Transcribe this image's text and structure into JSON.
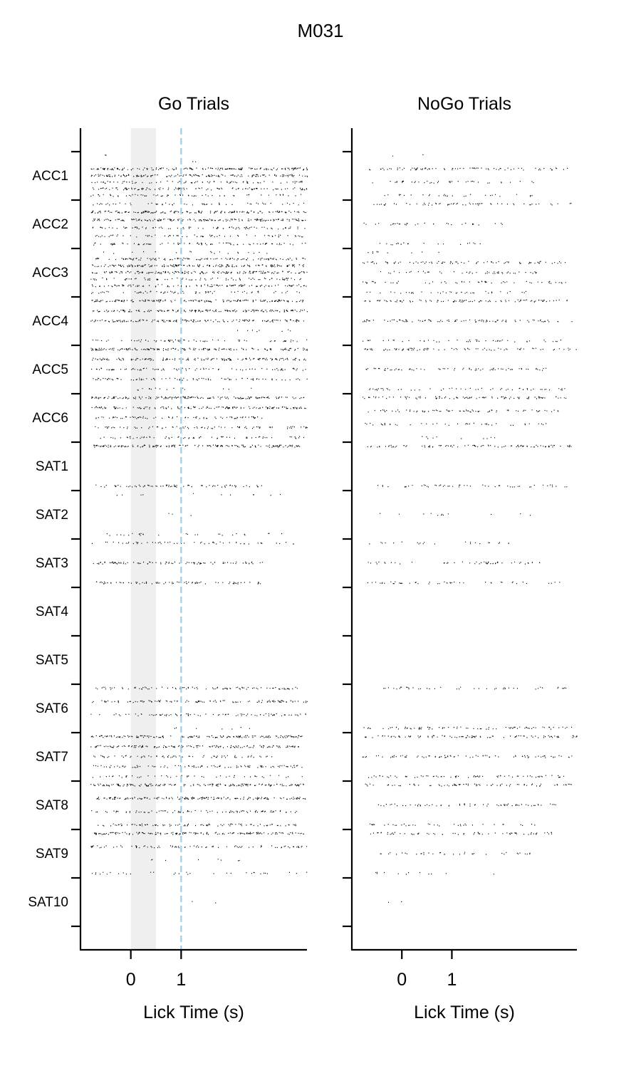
{
  "figure": {
    "title": "M031"
  },
  "chart_data": [
    {
      "type": "scatter",
      "title": "Go Trials",
      "xlabel": "Lick Time (s)",
      "ylabel": "",
      "xticks": [
        0,
        1
      ],
      "xlim": [
        -1,
        3.5
      ],
      "categories": [
        "ACC1",
        "ACC2",
        "ACC3",
        "ACC4",
        "ACC5",
        "ACC6",
        "SAT1",
        "SAT2",
        "SAT3",
        "SAT4",
        "SAT5",
        "SAT6",
        "SAT7",
        "SAT8",
        "SAT9",
        "SAT10"
      ],
      "shaded_interval": [
        0,
        0.5
      ],
      "reference_line": 1,
      "colors": {
        "shade": "#efefef",
        "reference_line": "#a8cfe8",
        "marks": "#000000"
      },
      "sessions": [
        {
          "name": "ACC1",
          "rows": [
            {
              "x": [
                -0.8,
                -0.4
              ],
              "density": 0.06
            },
            {
              "x": [
                1.2,
                1.3
              ],
              "density": 0.3
            },
            {
              "x": [
                -0.8,
                3.5
              ],
              "density": 1.0
            },
            {
              "x": [
                -0.8,
                3.5
              ],
              "density": 0.95
            },
            {
              "x": [
                -0.8,
                3.4
              ],
              "density": 0.5
            },
            {
              "x": [
                -0.8,
                3.5
              ],
              "density": 0.7
            },
            {
              "x": [
                -0.8,
                3.4
              ],
              "density": 0.4
            }
          ]
        },
        {
          "name": "ACC2",
          "rows": [
            {
              "x": [
                -0.8,
                3.5
              ],
              "density": 0.35
            },
            {
              "x": [
                -0.8,
                3.5
              ],
              "density": 0.95
            },
            {
              "x": [
                -0.8,
                3.5
              ],
              "density": 1.0
            },
            {
              "x": [
                -0.8,
                3.5
              ],
              "density": 0.5
            },
            {
              "x": [
                -0.8,
                3.5
              ],
              "density": 0.4
            },
            {
              "x": [
                -0.8,
                3.5
              ],
              "density": 0.5
            }
          ]
        },
        {
          "name": "ACC3",
          "rows": [
            {
              "x": [
                -0.8,
                3.2
              ],
              "density": 0.12
            },
            {
              "x": [
                -0.8,
                3.5
              ],
              "density": 0.7
            },
            {
              "x": [
                -0.8,
                3.5
              ],
              "density": 1.0
            },
            {
              "x": [
                -0.8,
                3.5
              ],
              "density": 1.0
            },
            {
              "x": [
                -0.8,
                3.5
              ],
              "density": 0.5
            },
            {
              "x": [
                -0.8,
                3.5
              ],
              "density": 0.7
            },
            {
              "x": [
                -0.8,
                3.5
              ],
              "density": 0.4
            }
          ]
        },
        {
          "name": "ACC4",
          "rows": [
            {
              "x": [
                -0.8,
                3.5
              ],
              "density": 1.0
            },
            {
              "x": [
                -0.8,
                3.5
              ],
              "density": 1.0
            },
            {
              "x": [
                -0.8,
                3.5
              ],
              "density": 0.9
            },
            {
              "x": [
                2.0,
                3.3
              ],
              "density": 0.15
            },
            {
              "x": [
                -0.8,
                3.5
              ],
              "density": 0.4
            }
          ]
        },
        {
          "name": "ACC5",
          "rows": [
            {
              "x": [
                -0.8,
                3.5
              ],
              "density": 1.0
            },
            {
              "x": [
                -0.8,
                3.5
              ],
              "density": 0.9
            },
            {
              "x": [
                -0.8,
                3.5
              ],
              "density": 0.5
            },
            {
              "x": [
                -0.8,
                3.5
              ],
              "density": 0.5
            },
            {
              "x": [
                -0.1,
                2.4
              ],
              "density": 0.15
            }
          ]
        },
        {
          "name": "ACC6",
          "rows": [
            {
              "x": [
                -0.8,
                3.5
              ],
              "density": 1.0
            },
            {
              "x": [
                -0.8,
                3.5
              ],
              "density": 0.9
            },
            {
              "x": [
                -0.7,
                2.6
              ],
              "density": 0.6
            },
            {
              "x": [
                -0.8,
                3.5
              ],
              "density": 0.5
            },
            {
              "x": [
                -0.8,
                3.5
              ],
              "density": 0.4
            }
          ]
        },
        {
          "name": "SAT1",
          "rows": [
            {
              "x": [
                -0.8,
                3.4
              ],
              "density": 1.0
            },
            {
              "x": [
                -0.7,
                2.6
              ],
              "density": 0.6
            }
          ]
        },
        {
          "name": "SAT2",
          "rows": [
            {
              "x": [
                -0.3,
                3.2
              ],
              "density": 0.08
            },
            {
              "x": [
                0.5,
                1.3
              ],
              "density": 0.1
            },
            {
              "x": [
                -0.6,
                3.0
              ],
              "density": 0.2
            }
          ]
        },
        {
          "name": "SAT3",
          "rows": [
            {
              "x": [
                -0.8,
                3.3
              ],
              "density": 0.35
            },
            {
              "x": [
                -0.8,
                2.7
              ],
              "density": 0.7
            },
            {
              "x": [
                -0.7,
                2.7
              ],
              "density": 0.6
            }
          ]
        },
        {
          "name": "SAT4",
          "rows": []
        },
        {
          "name": "SAT5",
          "rows": []
        },
        {
          "name": "SAT6",
          "rows": [
            {
              "x": [
                -0.7,
                3.3
              ],
              "density": 0.6
            },
            {
              "x": [
                -0.8,
                3.5
              ],
              "density": 0.7
            },
            {
              "x": [
                -0.8,
                3.5
              ],
              "density": 0.5
            },
            {
              "x": [
                0.8,
                2.5
              ],
              "density": 0.1
            }
          ]
        },
        {
          "name": "SAT7",
          "rows": [
            {
              "x": [
                -0.8,
                3.4
              ],
              "density": 1.0
            },
            {
              "x": [
                -0.8,
                3.4
              ],
              "density": 0.9
            },
            {
              "x": [
                -0.8,
                2.8
              ],
              "density": 0.5
            },
            {
              "x": [
                -0.8,
                3.4
              ],
              "density": 0.6
            },
            {
              "x": [
                -0.8,
                3.5
              ],
              "density": 0.3
            }
          ]
        },
        {
          "name": "SAT8",
          "rows": [
            {
              "x": [
                -0.8,
                3.5
              ],
              "density": 1.0
            },
            {
              "x": [
                -0.8,
                3.5
              ],
              "density": 1.0
            },
            {
              "x": [
                -0.8,
                3.3
              ],
              "density": 0.6
            },
            {
              "x": [
                -0.8,
                3.3
              ],
              "density": 0.6
            }
          ]
        },
        {
          "name": "SAT9",
          "rows": [
            {
              "x": [
                -0.8,
                3.5
              ],
              "density": 0.95
            },
            {
              "x": [
                -0.8,
                3.5
              ],
              "density": 0.5
            },
            {
              "x": [
                0.4,
                2.4
              ],
              "density": 0.1
            },
            {
              "x": [
                -0.8,
                3.5
              ],
              "density": 0.2
            }
          ]
        },
        {
          "name": "SAT10",
          "rows": [
            {
              "x": [
                0.6,
                2.1
              ],
              "density": 0.04
            }
          ]
        }
      ]
    },
    {
      "type": "scatter",
      "title": "NoGo Trials",
      "xlabel": "Lick Time (s)",
      "ylabel": "",
      "xticks": [
        0,
        1
      ],
      "xlim": [
        -1,
        3.5
      ],
      "categories": [
        "ACC1",
        "ACC2",
        "ACC3",
        "ACC4",
        "ACC5",
        "ACC6",
        "SAT1",
        "SAT2",
        "SAT3",
        "SAT4",
        "SAT5",
        "SAT6",
        "SAT7",
        "SAT8",
        "SAT9",
        "SAT10"
      ],
      "colors": {
        "marks": "#000000"
      },
      "sessions": [
        {
          "name": "ACC1",
          "rows": [
            {
              "x": [
                -0.2,
                0.6
              ],
              "density": 0.06
            },
            {
              "x": [
                -0.7,
                3.4
              ],
              "density": 0.5
            },
            {
              "x": [
                -0.6,
                2.8
              ],
              "density": 0.3
            },
            {
              "x": [
                -0.4,
                2.6
              ],
              "density": 0.25
            }
          ]
        },
        {
          "name": "ACC2",
          "rows": [
            {
              "x": [
                -0.6,
                3.5
              ],
              "density": 0.4
            },
            {
              "x": [
                -0.8,
                2.0
              ],
              "density": 0.3
            },
            {
              "x": [
                -0.6,
                1.6
              ],
              "density": 0.25
            }
          ]
        },
        {
          "name": "ACC3",
          "rows": [
            {
              "x": [
                -0.8,
                0.9
              ],
              "density": 0.15
            },
            {
              "x": [
                -0.8,
                3.4
              ],
              "density": 0.5
            },
            {
              "x": [
                -0.7,
                2.9
              ],
              "density": 0.35
            },
            {
              "x": [
                -0.8,
                3.3
              ],
              "density": 0.35
            },
            {
              "x": [
                -0.8,
                2.6
              ],
              "density": 0.3
            }
          ]
        },
        {
          "name": "ACC4",
          "rows": [
            {
              "x": [
                -0.8,
                3.4
              ],
              "density": 0.6
            },
            {
              "x": [
                -0.8,
                3.4
              ],
              "density": 0.6
            },
            {
              "x": [
                -0.8,
                3.2
              ],
              "density": 0.3
            }
          ]
        },
        {
          "name": "ACC5",
          "rows": [
            {
              "x": [
                -0.8,
                3.5
              ],
              "density": 0.5
            },
            {
              "x": [
                -0.8,
                3.0
              ],
              "density": 0.5
            },
            {
              "x": [
                -0.7,
                3.4
              ],
              "density": 0.35
            }
          ]
        },
        {
          "name": "ACC6",
          "rows": [
            {
              "x": [
                -0.8,
                3.4
              ],
              "density": 0.6
            },
            {
              "x": [
                -0.8,
                3.2
              ],
              "density": 0.5
            },
            {
              "x": [
                -0.8,
                2.9
              ],
              "density": 0.3
            },
            {
              "x": [
                0.1,
                1.9
              ],
              "density": 0.15
            }
          ]
        },
        {
          "name": "SAT1",
          "rows": [
            {
              "x": [
                -0.8,
                3.4
              ],
              "density": 0.6
            },
            {
              "x": [
                -0.6,
                3.3
              ],
              "density": 0.35
            }
          ]
        },
        {
          "name": "SAT2",
          "rows": [
            {
              "x": [
                -0.6,
                2.6
              ],
              "density": 0.1
            }
          ]
        },
        {
          "name": "SAT3",
          "rows": [
            {
              "x": [
                -0.8,
                2.2
              ],
              "density": 0.2
            },
            {
              "x": [
                -0.8,
                2.8
              ],
              "density": 0.35
            },
            {
              "x": [
                -0.8,
                3.2
              ],
              "density": 0.3
            }
          ]
        },
        {
          "name": "SAT4",
          "rows": []
        },
        {
          "name": "SAT5",
          "rows": []
        },
        {
          "name": "SAT6",
          "rows": [
            {
              "x": [
                -0.4,
                3.5
              ],
              "density": 0.3
            },
            {
              "x": [
                -0.8,
                3.4
              ],
              "density": 0.5
            }
          ]
        },
        {
          "name": "SAT7",
          "rows": [
            {
              "x": [
                -0.8,
                3.5
              ],
              "density": 0.6
            },
            {
              "x": [
                -0.8,
                3.4
              ],
              "density": 0.5
            },
            {
              "x": [
                -0.8,
                3.3
              ],
              "density": 0.45
            }
          ]
        },
        {
          "name": "SAT8",
          "rows": [
            {
              "x": [
                -0.8,
                3.4
              ],
              "density": 0.5
            },
            {
              "x": [
                -0.8,
                3.1
              ],
              "density": 0.45
            },
            {
              "x": [
                -0.7,
                2.7
              ],
              "density": 0.3
            }
          ]
        },
        {
          "name": "SAT9",
          "rows": [
            {
              "x": [
                -0.8,
                3.0
              ],
              "density": 0.45
            },
            {
              "x": [
                -0.6,
                2.6
              ],
              "density": 0.3
            },
            {
              "x": [
                -0.6,
                1.9
              ],
              "density": 0.12
            }
          ]
        },
        {
          "name": "SAT10",
          "rows": [
            {
              "x": [
                -0.5,
                0.2
              ],
              "density": 0.05
            }
          ]
        }
      ]
    }
  ]
}
